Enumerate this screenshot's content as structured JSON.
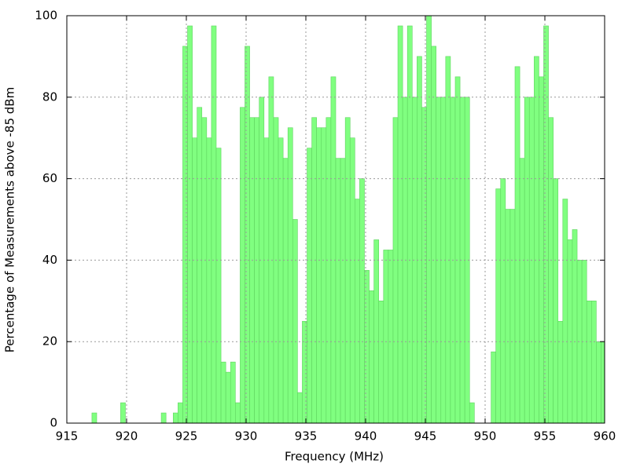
{
  "chart_data": {
    "type": "bar",
    "xlabel": "Frequency (MHz)",
    "ylabel": "Percentage of Measurements above -85 dBm",
    "x": [
      917.3,
      919.7,
      923.1,
      924.1,
      924.5,
      924.9,
      925.3,
      925.7,
      926.1,
      926.5,
      926.9,
      927.3,
      927.7,
      928.1,
      928.5,
      928.9,
      929.3,
      929.7,
      930.1,
      930.5,
      930.9,
      931.3,
      931.7,
      932.1,
      932.5,
      932.9,
      933.3,
      933.7,
      934.1,
      934.5,
      934.9,
      935.3,
      935.7,
      936.1,
      936.5,
      936.9,
      937.3,
      937.7,
      938.1,
      938.5,
      938.9,
      939.3,
      939.7,
      940.1,
      940.5,
      940.9,
      941.3,
      941.7,
      942.1,
      942.5,
      942.9,
      943.3,
      943.7,
      944.1,
      944.5,
      944.9,
      945.3,
      945.7,
      946.1,
      946.5,
      946.9,
      947.3,
      947.7,
      948.1,
      948.5,
      948.9,
      950.7,
      951.1,
      951.5,
      951.9,
      952.3,
      952.7,
      953.1,
      953.5,
      953.9,
      954.3,
      954.7,
      955.1,
      955.5,
      955.9,
      956.3,
      956.7,
      957.1,
      957.5,
      957.9,
      958.3,
      958.7,
      959.1,
      959.5,
      959.9
    ],
    "values": [
      2.5,
      5,
      2.5,
      2.5,
      5,
      92.5,
      97.5,
      70,
      77.5,
      75,
      70,
      97.5,
      67.5,
      15,
      12.5,
      15,
      5,
      77.5,
      92.5,
      75,
      75,
      80,
      70,
      85,
      75,
      70,
      65,
      72.5,
      50,
      7.5,
      25,
      67.5,
      75,
      72.5,
      72.5,
      75,
      85,
      65,
      65,
      75,
      70,
      55,
      60,
      37.5,
      32.5,
      45,
      30,
      42.5,
      42.5,
      75,
      97.5,
      80,
      97.5,
      80,
      90,
      77.5,
      100,
      92.5,
      80,
      80,
      90,
      80,
      85,
      80,
      80,
      5,
      17.5,
      57.5,
      60,
      52.5,
      52.5,
      87.5,
      65,
      80,
      80,
      90,
      85,
      97.5,
      75,
      60,
      25,
      55,
      45,
      47.5,
      40,
      40,
      30,
      30,
      20,
      20
    ],
    "color": "#80ff80",
    "xlim": [
      915,
      960
    ],
    "xticks": [
      915,
      920,
      925,
      930,
      935,
      940,
      945,
      950,
      955,
      960
    ],
    "ylim": [
      0,
      100
    ],
    "yticks": [
      0,
      20,
      40,
      60,
      80,
      100
    ],
    "grid": true
  }
}
